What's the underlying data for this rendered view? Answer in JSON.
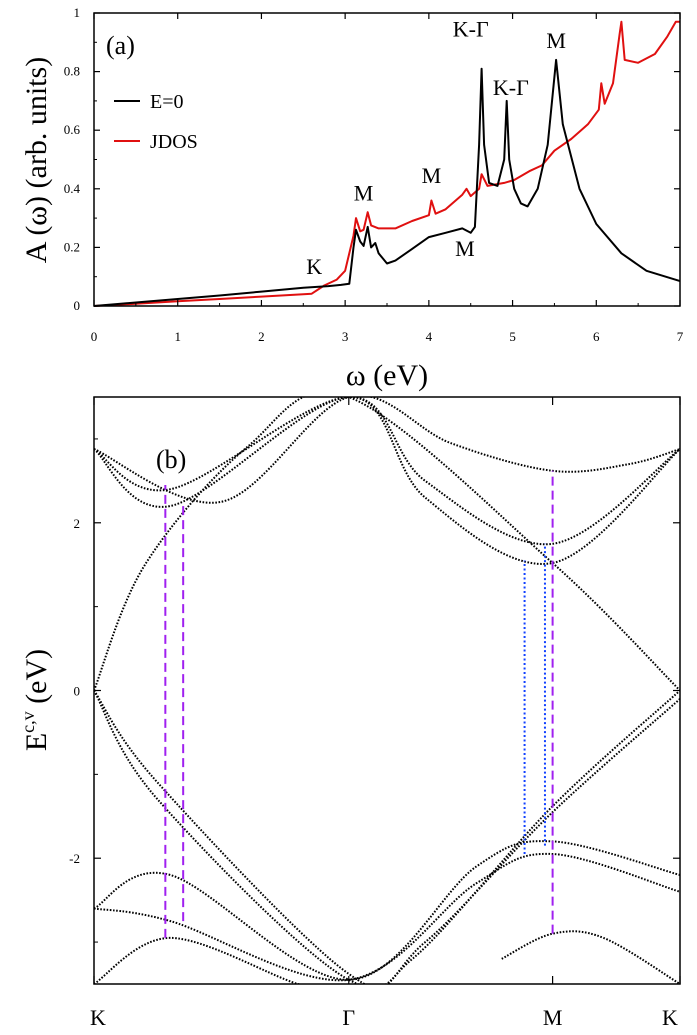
{
  "chart_data": [
    {
      "type": "line",
      "panel_label": "(a)",
      "xlabel": "ω (eV)",
      "ylabel": "A (ω) (arb. units)",
      "xlim": [
        0,
        7
      ],
      "ylim": [
        0,
        1
      ],
      "x_ticks": [
        "0",
        "1",
        "2",
        "3",
        "4",
        "5",
        "6",
        "7"
      ],
      "y_ticks": [
        "0",
        "0.2",
        "0.4",
        "0.6",
        "0.8",
        "1"
      ],
      "legend": {
        "placement": "top-left"
      },
      "series": [
        {
          "name": "E=0",
          "color": "#000000",
          "points": [
            [
              0,
              0
            ],
            [
              0.5,
              0.012
            ],
            [
              1,
              0.024
            ],
            [
              1.5,
              0.036
            ],
            [
              2,
              0.049
            ],
            [
              2.5,
              0.062
            ],
            [
              2.8,
              0.068
            ],
            [
              2.95,
              0.072
            ],
            [
              3.05,
              0.076
            ],
            [
              3.1,
              0.2
            ],
            [
              3.13,
              0.26
            ],
            [
              3.18,
              0.22
            ],
            [
              3.22,
              0.205
            ],
            [
              3.27,
              0.27
            ],
            [
              3.31,
              0.2
            ],
            [
              3.36,
              0.215
            ],
            [
              3.4,
              0.18
            ],
            [
              3.5,
              0.145
            ],
            [
              3.6,
              0.155
            ],
            [
              3.8,
              0.195
            ],
            [
              4,
              0.235
            ],
            [
              4.2,
              0.25
            ],
            [
              4.4,
              0.265
            ],
            [
              4.5,
              0.25
            ],
            [
              4.55,
              0.27
            ],
            [
              4.6,
              0.55
            ],
            [
              4.63,
              0.81
            ],
            [
              4.66,
              0.55
            ],
            [
              4.72,
              0.42
            ],
            [
              4.82,
              0.41
            ],
            [
              4.9,
              0.5
            ],
            [
              4.93,
              0.7
            ],
            [
              4.96,
              0.5
            ],
            [
              5.02,
              0.4
            ],
            [
              5.1,
              0.35
            ],
            [
              5.18,
              0.34
            ],
            [
              5.3,
              0.4
            ],
            [
              5.42,
              0.55
            ],
            [
              5.52,
              0.84
            ],
            [
              5.6,
              0.62
            ],
            [
              5.8,
              0.4
            ],
            [
              6,
              0.28
            ],
            [
              6.3,
              0.18
            ],
            [
              6.6,
              0.12
            ],
            [
              7,
              0.085
            ]
          ]
        },
        {
          "name": "JDOS",
          "color": "#e01010",
          "points": [
            [
              0,
              0
            ],
            [
              0.5,
              0.008
            ],
            [
              1,
              0.016
            ],
            [
              1.5,
              0.024
            ],
            [
              2,
              0.032
            ],
            [
              2.5,
              0.04
            ],
            [
              2.6,
              0.042
            ],
            [
              2.75,
              0.07
            ],
            [
              2.9,
              0.09
            ],
            [
              3,
              0.12
            ],
            [
              3.1,
              0.24
            ],
            [
              3.13,
              0.3
            ],
            [
              3.18,
              0.255
            ],
            [
              3.22,
              0.26
            ],
            [
              3.27,
              0.32
            ],
            [
              3.31,
              0.275
            ],
            [
              3.4,
              0.265
            ],
            [
              3.6,
              0.265
            ],
            [
              3.8,
              0.29
            ],
            [
              4,
              0.31
            ],
            [
              4.03,
              0.36
            ],
            [
              4.08,
              0.315
            ],
            [
              4.2,
              0.33
            ],
            [
              4.4,
              0.38
            ],
            [
              4.45,
              0.4
            ],
            [
              4.5,
              0.375
            ],
            [
              4.6,
              0.4
            ],
            [
              4.63,
              0.45
            ],
            [
              4.7,
              0.41
            ],
            [
              4.9,
              0.42
            ],
            [
              5.02,
              0.43
            ],
            [
              5.2,
              0.46
            ],
            [
              5.35,
              0.48
            ],
            [
              5.5,
              0.53
            ],
            [
              5.7,
              0.57
            ],
            [
              5.9,
              0.62
            ],
            [
              6.03,
              0.67
            ],
            [
              6.06,
              0.76
            ],
            [
              6.1,
              0.69
            ],
            [
              6.2,
              0.76
            ],
            [
              6.28,
              0.93
            ],
            [
              6.3,
              0.97
            ],
            [
              6.34,
              0.84
            ],
            [
              6.5,
              0.83
            ],
            [
              6.7,
              0.86
            ],
            [
              6.85,
              0.92
            ],
            [
              6.95,
              0.97
            ],
            [
              7,
              0.97
            ]
          ]
        }
      ],
      "annotations": [
        {
          "text": "K",
          "x": 2.63,
          "y": 0.11
        },
        {
          "text": "M",
          "x": 3.22,
          "y": 0.36
        },
        {
          "text": "M",
          "x": 4.03,
          "y": 0.42
        },
        {
          "text": "M",
          "x": 4.43,
          "y": 0.17
        },
        {
          "text": "K-Γ",
          "x": 4.5,
          "y": 0.92
        },
        {
          "text": "K-Γ",
          "x": 4.98,
          "y": 0.72
        },
        {
          "text": "M",
          "x": 5.52,
          "y": 0.88
        }
      ]
    },
    {
      "type": "scatter",
      "panel_label": "(b)",
      "ylabel": "E^{c,v} (eV)",
      "ylabel_main": "E",
      "ylabel_sup": "c,v",
      "ylabel_unit": " (eV)",
      "ylim": [
        -3.5,
        3.5
      ],
      "y_ticks": [
        "-2",
        "0",
        "2"
      ],
      "x_tick_labels": [
        "K",
        "Γ",
        "M",
        "K"
      ],
      "x_tick_positions": [
        0,
        1,
        1.8,
        2.3
      ],
      "band_style": "dotted",
      "bands": [
        {
          "x": [
            0,
            0.5,
            1.0,
            1.4,
            1.8,
            2.1,
            2.3
          ],
          "y": [
            2.88,
            2.25,
            3.5,
            2.95,
            2.62,
            2.7,
            2.88
          ]
        },
        {
          "x": [
            0,
            0.3,
            1.0,
            1.3,
            1.8,
            2.3
          ],
          "y": [
            2.88,
            2.4,
            3.5,
            2.5,
            1.75,
            2.88
          ]
        },
        {
          "x": [
            0,
            0.3,
            1.0,
            1.3,
            1.8,
            2.3
          ],
          "y": [
            2.88,
            2.2,
            3.5,
            2.3,
            1.52,
            2.88
          ]
        },
        {
          "x": [
            0,
            0.2,
            0.6,
            1.0,
            1.8,
            2.3
          ],
          "y": [
            0,
            1.5,
            2.9,
            3.5,
            1.52,
            0
          ]
        },
        {
          "x": [
            0,
            0.25,
            1.0,
            1.25,
            1.8,
            2.3
          ],
          "y": [
            0,
            -1.1,
            -3.38,
            -3.2,
            -1.38,
            0
          ]
        },
        {
          "x": [
            0,
            0.25,
            1.0,
            1.3,
            1.8,
            2.3
          ],
          "y": [
            0,
            -1.3,
            -3.45,
            -3.0,
            -1.45,
            -0.1
          ]
        },
        {
          "x": [
            0,
            0.3,
            1.0,
            1.5,
            1.8,
            2.3
          ],
          "y": [
            -2.6,
            -2.2,
            -3.45,
            -2.1,
            -1.8,
            -2.2
          ]
        },
        {
          "x": [
            0,
            0.3,
            1.0,
            1.5,
            1.8,
            2.3
          ],
          "y": [
            -2.6,
            -2.75,
            -3.45,
            -2.3,
            -1.95,
            -2.4
          ]
        },
        {
          "x": [
            0,
            0.3,
            0.8,
            1.0
          ],
          "y": [
            -3.5,
            -2.95,
            -3.5,
            -3.6
          ]
        },
        {
          "x": [
            1.6,
            1.8,
            2.0,
            2.3
          ],
          "y": [
            -3.2,
            -2.9,
            -2.95,
            -3.5
          ]
        }
      ],
      "transitions": [
        {
          "x": 0.28,
          "y1": -2.95,
          "y2": 2.45,
          "color": "#a020f0",
          "style": "dashed"
        },
        {
          "x": 0.35,
          "y1": -2.75,
          "y2": 2.25,
          "color": "#a020f0",
          "style": "dashed"
        },
        {
          "x": 1.69,
          "y1": -1.95,
          "y2": 1.55,
          "color": "#1040ff",
          "style": "dotted"
        },
        {
          "x": 1.77,
          "y1": -1.85,
          "y2": 1.75,
          "color": "#1040ff",
          "style": "dotted"
        },
        {
          "x": 1.8,
          "y1": -2.9,
          "y2": 2.62,
          "color": "#a020f0",
          "style": "dashed"
        }
      ]
    }
  ]
}
